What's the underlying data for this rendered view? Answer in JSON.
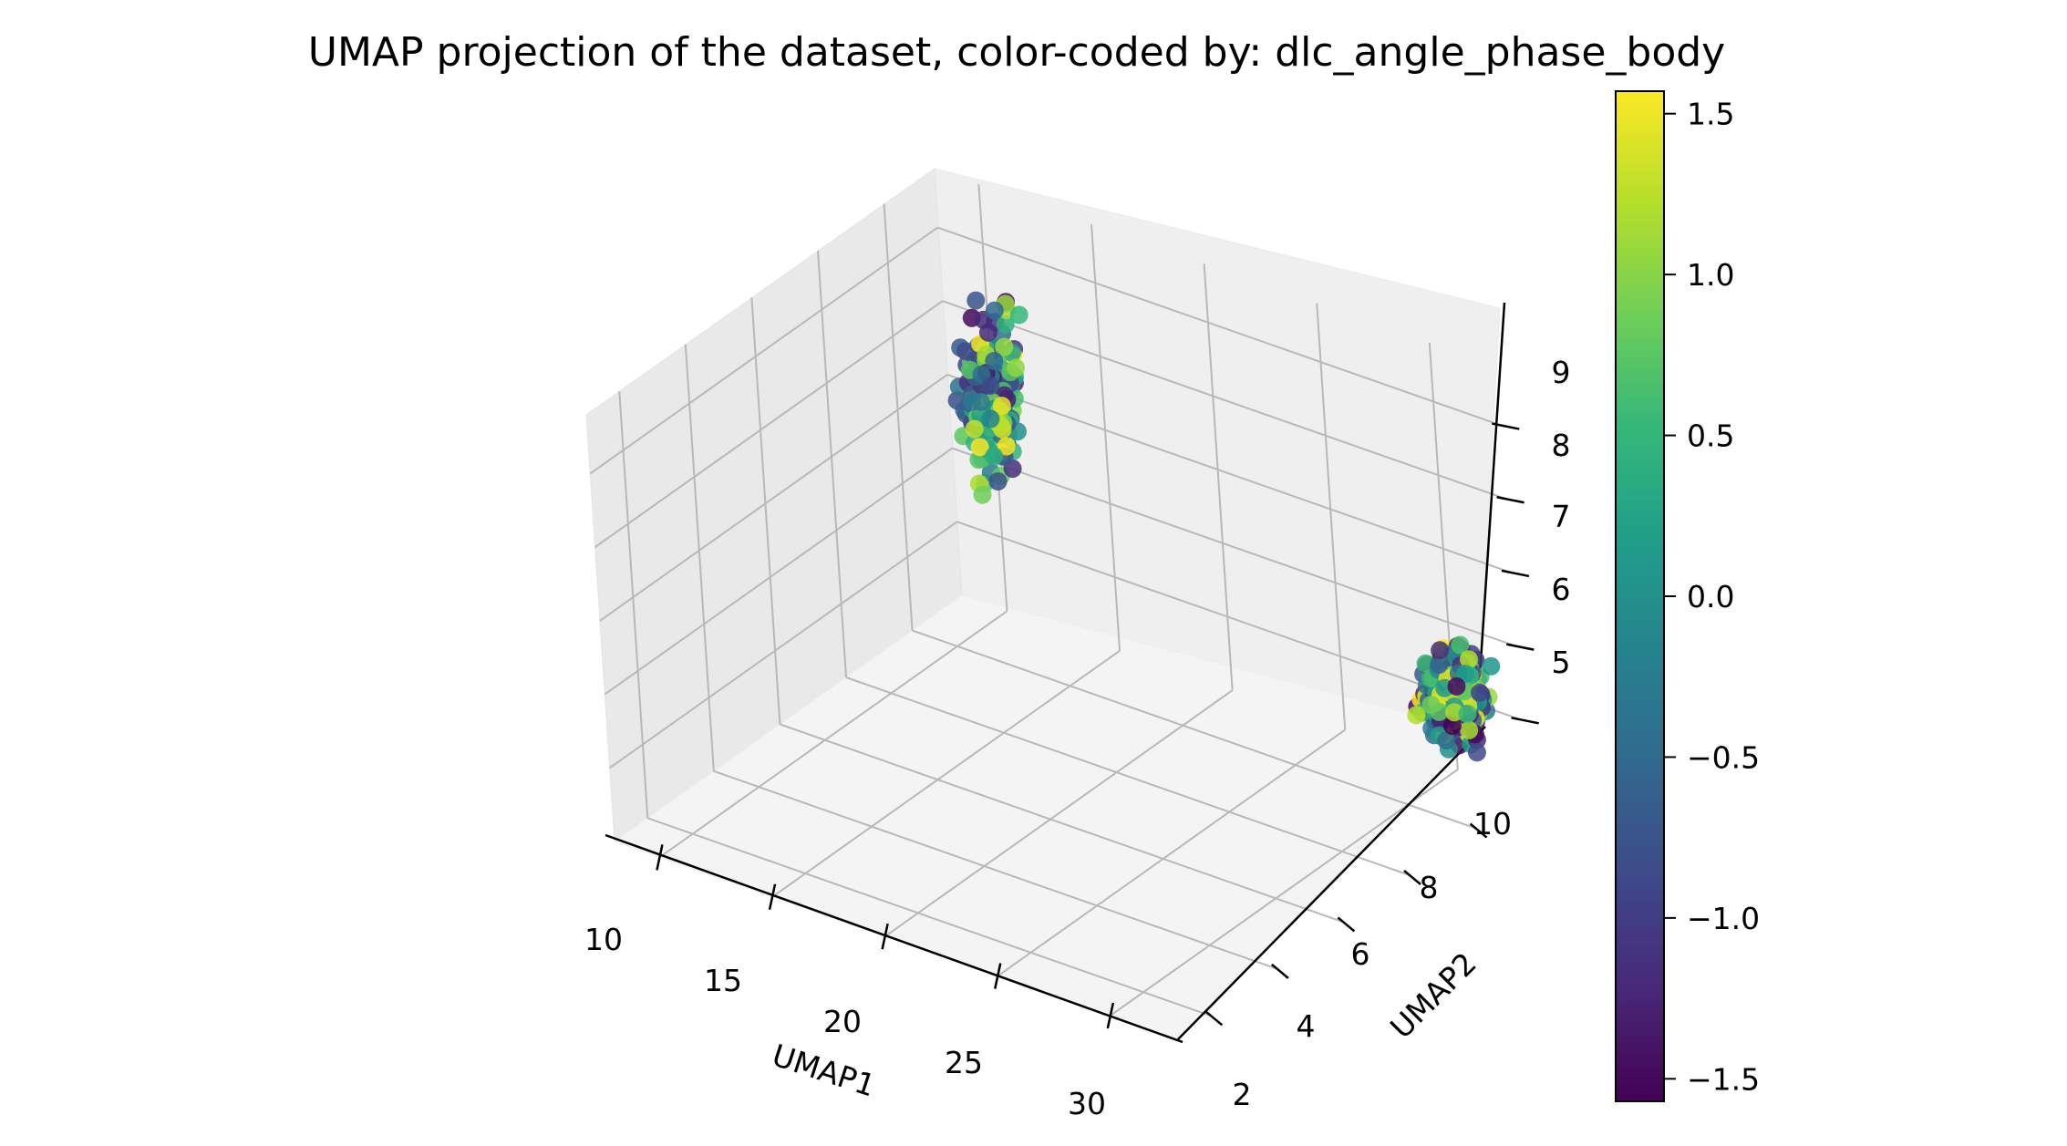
{
  "chart_data": {
    "type": "scatter",
    "projection": "3d",
    "title": "UMAP projection of the dataset, color-coded by: dlc_angle_phase_body",
    "xlabel": "UMAP1",
    "ylabel": "UMAP2",
    "zlabel": "",
    "xlim": [
      8,
      33
    ],
    "ylim": [
      1,
      11.5
    ],
    "zlim": [
      4,
      9.8
    ],
    "xticks": [
      "10",
      "15",
      "20",
      "25",
      "30"
    ],
    "yticks": [
      "2",
      "4",
      "6",
      "8",
      "10"
    ],
    "zticks": [
      "5",
      "6",
      "7",
      "8",
      "9"
    ],
    "grid": true,
    "colorbar": {
      "colormap": "viridis",
      "range": [
        -1.57,
        1.57
      ],
      "ticks": [
        "1.5",
        "1.0",
        "0.5",
        "0.0",
        "−0.5",
        "−1.0",
        "−1.5"
      ],
      "tick_values": [
        1.5,
        1.0,
        0.5,
        0.0,
        -0.5,
        -1.0,
        -1.5
      ],
      "colors": [
        "#440154",
        "#482878",
        "#3e4989",
        "#31688e",
        "#26828e",
        "#1f9e89",
        "#35b779",
        "#6ece58",
        "#b5de2b",
        "#fde725"
      ]
    },
    "clusters": [
      {
        "name": "",
        "center": [
          11,
          10.8,
          7.2
        ],
        "spread": [
          0.8,
          0.6,
          1.0
        ],
        "count": 220
      },
      {
        "name": "",
        "center": [
          31,
          10.9,
          5.3
        ],
        "spread": [
          0.8,
          0.5,
          0.55
        ],
        "count": 420
      }
    ]
  }
}
